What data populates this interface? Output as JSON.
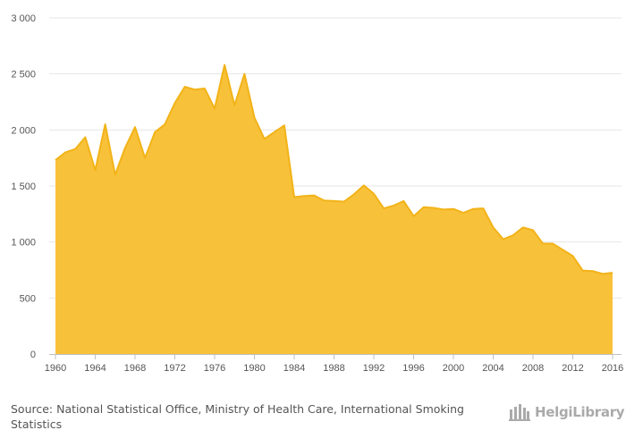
{
  "chart_data": {
    "type": "area",
    "title": "",
    "xlabel": "",
    "ylabel": "",
    "xlim": [
      1960,
      2016
    ],
    "ylim": [
      0,
      3000
    ],
    "y_ticks": [
      0,
      500,
      1000,
      1500,
      2000,
      2500,
      3000
    ],
    "y_tick_labels": [
      "0",
      "500",
      "1 000",
      "1 500",
      "2 000",
      "2 500",
      "3 000"
    ],
    "x_ticks": [
      1960,
      1964,
      1968,
      1972,
      1976,
      1980,
      1984,
      1988,
      1992,
      1996,
      2000,
      2004,
      2008,
      2012,
      2016
    ],
    "x_tick_labels": [
      "1960",
      "1964",
      "1968",
      "1972",
      "1976",
      "1980",
      "1984",
      "1988",
      "1992",
      "1996",
      "2000",
      "2004",
      "2008",
      "2012",
      "2016"
    ],
    "grid": "horizontal",
    "legend": "none",
    "fill_color": "#F8C13A",
    "line_color": "#F2B318",
    "x": [
      1960,
      1961,
      1962,
      1963,
      1964,
      1965,
      1966,
      1967,
      1968,
      1969,
      1970,
      1971,
      1972,
      1973,
      1974,
      1975,
      1976,
      1977,
      1978,
      1979,
      1980,
      1981,
      1982,
      1983,
      1984,
      1985,
      1986,
      1987,
      1988,
      1989,
      1990,
      1991,
      1992,
      1993,
      1994,
      1995,
      1996,
      1997,
      1998,
      1999,
      2000,
      2001,
      2002,
      2003,
      2004,
      2005,
      2006,
      2007,
      2008,
      2009,
      2010,
      2011,
      2012,
      2013,
      2014,
      2015,
      2016
    ],
    "values": [
      1730,
      1800,
      1830,
      1935,
      1640,
      2050,
      1600,
      1840,
      2025,
      1750,
      1980,
      2050,
      2240,
      2385,
      2360,
      2370,
      2190,
      2580,
      2220,
      2500,
      2110,
      1920,
      1980,
      2040,
      1400,
      1410,
      1415,
      1370,
      1365,
      1360,
      1425,
      1505,
      1430,
      1300,
      1325,
      1365,
      1230,
      1310,
      1305,
      1290,
      1295,
      1260,
      1295,
      1300,
      1130,
      1025,
      1060,
      1130,
      1105,
      985,
      985,
      930,
      875,
      745,
      740,
      715,
      725
    ]
  },
  "footer": {
    "source_label": "Source:",
    "source_text": "National Statistical Office, Ministry of Health Care, International Smoking Statistics"
  },
  "logo": {
    "text": "HelgiLibrary",
    "icon": "library-building-icon",
    "color": "#aaaaaa"
  }
}
